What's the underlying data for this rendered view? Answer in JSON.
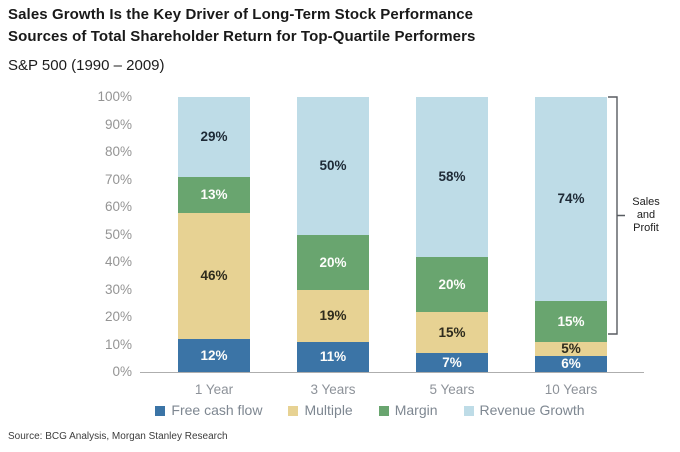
{
  "header": {
    "title_line1": "Sales Growth Is the Key Driver of Long-Term Stock Performance",
    "title_line2": "Sources of Total Shareholder Return for Top-Quartile Performers",
    "subtitle": "S&P 500 (1990 – 2009)"
  },
  "chart_data": {
    "type": "bar",
    "stacked": true,
    "title": "Sources of Total Shareholder Return for Top-Quartile Performers",
    "categories": [
      "1 Year",
      "3 Years",
      "5 Years",
      "10 Years"
    ],
    "series": [
      {
        "name": "Free cash flow",
        "color": "#3b74a6",
        "label_color": "#fdfdfb",
        "values": [
          12,
          11,
          7,
          6
        ]
      },
      {
        "name": "Multiple",
        "color": "#e7d293",
        "label_color": "#2e2b1d",
        "values": [
          46,
          19,
          15,
          5
        ]
      },
      {
        "name": "Margin",
        "color": "#69a56f",
        "label_color": "#fdfdfb",
        "values": [
          13,
          20,
          20,
          15
        ]
      },
      {
        "name": "Revenue Growth",
        "color": "#bedce7",
        "label_color": "#1e2a36",
        "values": [
          29,
          50,
          58,
          74
        ]
      }
    ],
    "value_suffix": "%",
    "y_ticks": [
      "0%",
      "10%",
      "20%",
      "30%",
      "40%",
      "50%",
      "60%",
      "70%",
      "80%",
      "90%",
      "100%"
    ],
    "ylim": [
      0,
      100
    ],
    "grid": false,
    "legend_position": "bottom"
  },
  "annotation": {
    "label": "Sales and Profit",
    "category": "10 Years",
    "covers_series": [
      "Revenue Growth",
      "Margin"
    ],
    "from_value": 11,
    "to_value": 100
  },
  "footer": {
    "source": "Source: BCG Analysis, Morgan Stanley Research"
  }
}
